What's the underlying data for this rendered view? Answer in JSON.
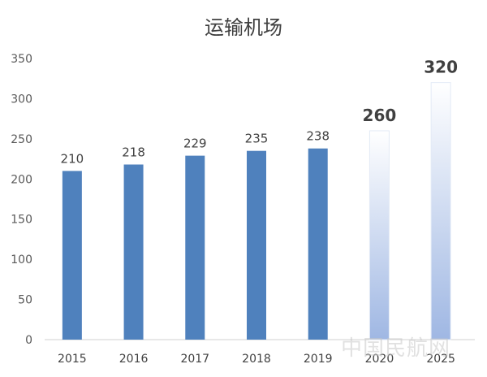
{
  "chart_data": {
    "type": "bar",
    "title": "运输机场",
    "categories": [
      "2015",
      "2016",
      "2017",
      "2018",
      "2019",
      "2020",
      "2025"
    ],
    "values": [
      210,
      218,
      229,
      235,
      238,
      260,
      320
    ],
    "data_labels": [
      "210",
      "218",
      "229",
      "235",
      "238",
      "260",
      "320"
    ],
    "ylim": [
      0,
      350
    ],
    "yticks": [
      0,
      50,
      100,
      150,
      200,
      250,
      300,
      350
    ],
    "projected_categories": [
      "2020",
      "2025"
    ],
    "grid": false,
    "legend": "none",
    "colors": {
      "actual_bar": "#4f81bd",
      "projected_bar_top": "#ffffff",
      "projected_bar_bottom": "#9fb7e3"
    }
  },
  "watermark": "中国民航网"
}
